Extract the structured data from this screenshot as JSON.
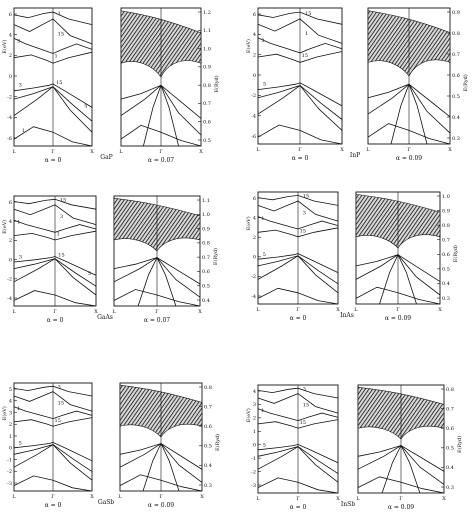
{
  "panels": [
    {
      "material": "GaP",
      "left_alpha": "α = 0",
      "right_alpha": "α = 0.07",
      "left_axis_label": "E(eV)",
      "right_axis_label": "E(Ryd)",
      "left_ticks": [
        "6",
        "4",
        "2",
        "0",
        "-2",
        "-4",
        "-6"
      ],
      "right_ticks": [
        "1.2",
        "1.1",
        "1.0",
        "0.9",
        "0.8",
        "0.7",
        "0.6",
        "0.5"
      ],
      "bottom_ticks": [
        "L",
        "Γ",
        "X"
      ],
      "band_labels": [
        "1",
        "15",
        "3",
        "1",
        "3",
        "15",
        "5",
        "1"
      ]
    },
    {
      "material": "InP",
      "left_alpha": "α = 0",
      "right_alpha": "α = 0.09",
      "left_axis_label": "E(eV)",
      "right_axis_label": "E(Ryd)",
      "left_ticks": [
        "6",
        "4",
        "2",
        "0",
        "-2",
        "-4",
        "-6"
      ],
      "right_ticks": [
        "0.9",
        "0.8",
        "0.7",
        "0.6",
        "0.5",
        "0.4",
        "0.3"
      ],
      "bottom_ticks": [
        "L",
        "Γ",
        "X"
      ],
      "band_labels": [
        "15",
        "1",
        "3",
        "15",
        "5"
      ]
    },
    {
      "material": "GaAs",
      "left_alpha": "α = 0",
      "right_alpha": "α = 0.07",
      "left_axis_label": "E(eV)",
      "right_axis_label": "E(Ryd)",
      "left_ticks": [
        "6",
        "4",
        "2",
        "0",
        "-2",
        "-4"
      ],
      "right_ticks": [
        "1.1",
        "1.0",
        "0.9",
        "0.8",
        "0.7",
        "0.6",
        "0.5",
        "0.4"
      ],
      "bottom_ticks": [
        "L",
        "Γ",
        "X"
      ],
      "band_labels": [
        "15",
        "3",
        "1",
        "1",
        "3",
        "15",
        "5"
      ]
    },
    {
      "material": "InAs",
      "left_alpha": "α = 0",
      "right_alpha": "α = 0.09",
      "left_axis_label": "E(eV)",
      "right_axis_label": "E(Ryd)",
      "left_ticks": [
        "6",
        "4",
        "2",
        "0",
        "-2",
        "-4"
      ],
      "right_ticks": [
        "1.0",
        "0.9",
        "0.8",
        "0.7",
        "0.6",
        "0.5",
        "0.4",
        "0.3"
      ],
      "bottom_ticks": [
        "L",
        "Γ",
        "X"
      ],
      "band_labels": [
        "15",
        "3",
        "1",
        "15",
        "5"
      ]
    },
    {
      "material": "GaSb",
      "left_alpha": "α = 0",
      "right_alpha": "α = 0.09",
      "left_axis_label": "E(eV)",
      "right_axis_label": "E(Ryd)",
      "left_ticks": [
        "5",
        "4",
        "3",
        "2",
        "1",
        "0",
        "-1",
        "-2",
        "-3"
      ],
      "right_ticks": [
        "0.8",
        "0.7",
        "0.6",
        "0.5",
        "0.4",
        "0.3"
      ],
      "bottom_ticks": [
        "L",
        "Γ",
        "X"
      ],
      "band_labels": [
        "3",
        "15",
        "1",
        "15",
        "5"
      ]
    },
    {
      "material": "InSb",
      "left_alpha": "α = 0",
      "right_alpha": "α = 0.09",
      "left_axis_label": "E(eV)",
      "right_axis_label": "E(Ryd)",
      "left_ticks": [
        "4",
        "3",
        "2",
        "1",
        "0",
        "-1",
        "-2",
        "-3"
      ],
      "right_ticks": [
        "0.8",
        "0.7",
        "0.6",
        "0.5",
        "0.4",
        "0.3"
      ],
      "bottom_ticks": [
        "L",
        "Γ",
        "X"
      ],
      "band_labels": [
        "3",
        "15",
        "1",
        "15",
        "5"
      ]
    }
  ]
}
